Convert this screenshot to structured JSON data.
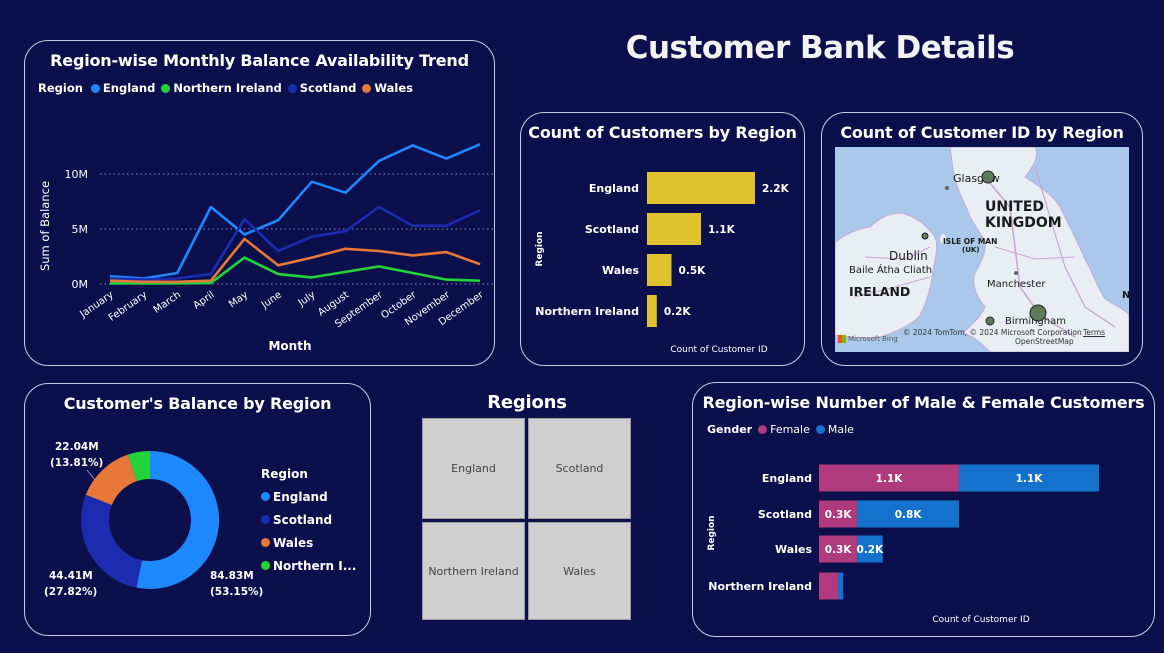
{
  "dashboard": {
    "title": "Customer Bank Details"
  },
  "trend": {
    "title": "Region-wise Monthly Balance Availability Trend",
    "legend_title": "Region",
    "xlabel": "Month",
    "ylabel": "Sum of Balance",
    "yticks": [
      "10M",
      "5M",
      "0M"
    ]
  },
  "region_count": {
    "title": "Count of Customers by Region",
    "xlabel": "Count of Customer ID",
    "ylabel": "Region"
  },
  "map": {
    "title": "Count of Customer ID by Region",
    "labels": {
      "glasgow": "Glasgow",
      "united": "UNITED",
      "kingdom": "KINGDOM",
      "isle": "ISLE OF MAN",
      "uk": "(UK)",
      "dublin": "Dublin",
      "baile": "Baile Átha Cliath",
      "ireland": "IRELAND",
      "manchester": "Manchester",
      "birmingham": "Birmingham",
      "credit": "© 2024 TomTom, © 2024 Microsoft Corporation",
      "terms": "Terms",
      "openstreetmap": "OpenStreetMap",
      "bing": "Microsoft Bing",
      "edge_n": "N"
    }
  },
  "donut": {
    "title": "Customer's Balance by Region",
    "legend_title": "Region",
    "legend": [
      "England",
      "Scotland",
      "Wales",
      "Northern I..."
    ],
    "labels": {
      "wales_value": "22.04M",
      "wales_pct": "(13.81%)",
      "scotland_value": "44.41M",
      "scotland_pct": "(27.82%)",
      "england_value": "84.83M",
      "england_pct": "(53.15%)"
    }
  },
  "regions_slicer": {
    "title": "Regions",
    "tiles": [
      "England",
      "Scotland",
      "Northern Ireland",
      "Wales"
    ]
  },
  "gender": {
    "title": "Region-wise Number of Male & Female Customers",
    "legend_title": "Gender",
    "legend": [
      "Female",
      "Male"
    ],
    "xlabel": "Count of Customer ID",
    "ylabel": "Region"
  },
  "chart_data": [
    {
      "type": "line",
      "title": "Region-wise Monthly Balance Availability Trend",
      "xlabel": "Month",
      "ylabel": "Sum of Balance",
      "x": [
        "January",
        "February",
        "March",
        "April",
        "May",
        "June",
        "July",
        "August",
        "September",
        "October",
        "November",
        "December"
      ],
      "ylim": [
        0,
        13000000
      ],
      "yticks": [
        "0M",
        "5M",
        "10M"
      ],
      "grid": true,
      "legend": "top",
      "series": [
        {
          "name": "England",
          "color": "#1e88ff",
          "values": [
            700000,
            500000,
            1000000,
            7000000,
            4500000,
            5800000,
            9300000,
            8300000,
            11200000,
            12600000,
            11400000,
            12700000
          ]
        },
        {
          "name": "Northern Ireland",
          "color": "#22d33a",
          "values": [
            50000,
            50000,
            50000,
            100000,
            2400000,
            900000,
            600000,
            1100000,
            1600000,
            1000000,
            400000,
            300000
          ]
        },
        {
          "name": "Scotland",
          "color": "#1c2cb0",
          "values": [
            500000,
            400000,
            500000,
            900000,
            5900000,
            3000000,
            4300000,
            4800000,
            7000000,
            5300000,
            5300000,
            6700000
          ]
        },
        {
          "name": "Wales",
          "color": "#e8773a",
          "values": [
            300000,
            200000,
            200000,
            300000,
            4100000,
            1700000,
            2400000,
            3200000,
            3000000,
            2600000,
            2900000,
            1800000
          ]
        }
      ]
    },
    {
      "type": "bar",
      "title": "Count of Customers by Region",
      "xlabel": "Count of Customer ID",
      "ylabel": "Region",
      "categories": [
        "England",
        "Scotland",
        "Wales",
        "Northern Ireland"
      ],
      "values": [
        2200,
        1100,
        500,
        200
      ],
      "value_labels": [
        "2.2K",
        "1.1K",
        "0.5K",
        "0.2K"
      ],
      "color": "#e0c12f"
    },
    {
      "type": "pie",
      "title": "Customer's Balance by Region",
      "categories": [
        "England",
        "Scotland",
        "Wales",
        "Northern Ireland"
      ],
      "values": [
        84.83,
        44.41,
        22.04,
        8.33
      ],
      "percent": [
        53.15,
        27.82,
        13.81,
        5.22
      ],
      "colors": [
        "#1e88ff",
        "#1c2cb0",
        "#e8773a",
        "#22d33a"
      ],
      "legend": "right"
    },
    {
      "type": "bar",
      "title": "Region-wise Number of Male & Female Customers",
      "xlabel": "Count of Customer ID",
      "ylabel": "Region",
      "categories": [
        "England",
        "Scotland",
        "Wales",
        "Northern Ireland"
      ],
      "legend": "top-left",
      "series": [
        {
          "name": "Female",
          "color": "#b03a7e",
          "values": [
            1100,
            300,
            300,
            150
          ],
          "labels": [
            "1.1K",
            "0.3K",
            "0.3K",
            ""
          ]
        },
        {
          "name": "Male",
          "color": "#1572cc",
          "values": [
            1100,
            800,
            200,
            40
          ],
          "labels": [
            "1.1K",
            "0.8K",
            "0.2K",
            ""
          ]
        }
      ]
    }
  ]
}
